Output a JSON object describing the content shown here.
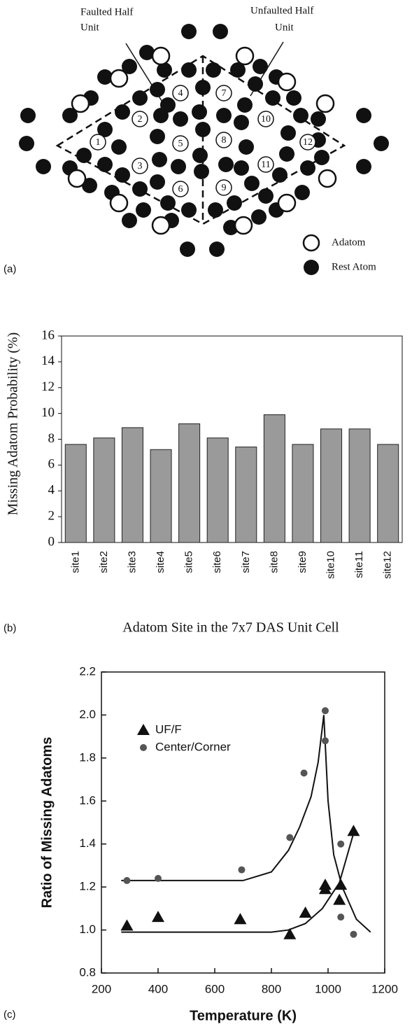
{
  "panel_labels": [
    "(a)",
    "(b)",
    "(c)"
  ],
  "diagram": {
    "annotations": [
      "Faulted Half",
      "Unit",
      "Unfaulted Half",
      "Unit"
    ],
    "site_labels": [
      "1",
      "2",
      "3",
      "4",
      "5",
      "6",
      "7",
      "8",
      "9",
      "10",
      "11",
      "12"
    ],
    "legend": [
      "Adatom",
      "Rest Atom"
    ]
  },
  "chart_data": [
    {
      "type": "bar",
      "ylabel": "Missing Adatom Probability (%)",
      "xlabel": "Adatom Site in the 7x7 DAS Unit Cell",
      "categories": [
        "site1",
        "site2",
        "site3",
        "site4",
        "site5",
        "site6",
        "site7",
        "site8",
        "site9",
        "site10",
        "site11",
        "site12"
      ],
      "values": [
        7.6,
        8.1,
        8.9,
        7.2,
        9.2,
        8.1,
        7.4,
        9.9,
        7.6,
        8.8,
        8.8,
        7.6
      ],
      "color": "#9a9a9a",
      "ylim": [
        0,
        16
      ],
      "yticks": [
        0,
        2,
        4,
        6,
        8,
        10,
        12,
        14,
        16
      ]
    },
    {
      "type": "scatter",
      "ylabel": "Ratio of Missing Adatoms",
      "xlabel": "Temperature (K)",
      "xlim": [
        200,
        1200
      ],
      "xticks": [
        200,
        400,
        600,
        800,
        1000,
        1200
      ],
      "ylim": [
        0.8,
        2.2
      ],
      "yticks": [
        0.8,
        {
          "value": 1,
          "label": "1.0"
        },
        1.2,
        1.4,
        1.6,
        1.8,
        {
          "value": 2,
          "label": "2.0"
        },
        2.2
      ],
      "series": [
        {
          "name": "UF/F",
          "marker": "triangle",
          "color": "#111111",
          "x": [
            290,
            400,
            690,
            865,
            920,
            990,
            990,
            1040,
            1045,
            1090
          ],
          "values": [
            1.02,
            1.06,
            1.05,
            0.98,
            1.08,
            1.21,
            1.19,
            1.14,
            1.21,
            1.46
          ]
        },
        {
          "name": "Center/Corner",
          "marker": "circle",
          "color": "#555555",
          "x": [
            290,
            400,
            695,
            865,
            915,
            990,
            990,
            1045,
            1045,
            1090
          ],
          "values": [
            1.23,
            1.24,
            1.28,
            1.43,
            1.73,
            2.02,
            1.88,
            1.4,
            1.06,
            0.98
          ]
        }
      ],
      "fits": [
        {
          "x": [
            270,
            700,
            800,
            860,
            900,
            940,
            965,
            985,
            1000,
            1020,
            1050,
            1100,
            1150
          ],
          "values": [
            1.23,
            1.23,
            1.27,
            1.37,
            1.48,
            1.62,
            1.78,
            2.0,
            1.6,
            1.35,
            1.2,
            1.05,
            0.99
          ]
        },
        {
          "x": [
            270,
            800,
            860,
            920,
            980,
            1040,
            1090
          ],
          "values": [
            0.99,
            0.99,
            1.0,
            1.03,
            1.1,
            1.22,
            1.45
          ]
        }
      ]
    }
  ]
}
